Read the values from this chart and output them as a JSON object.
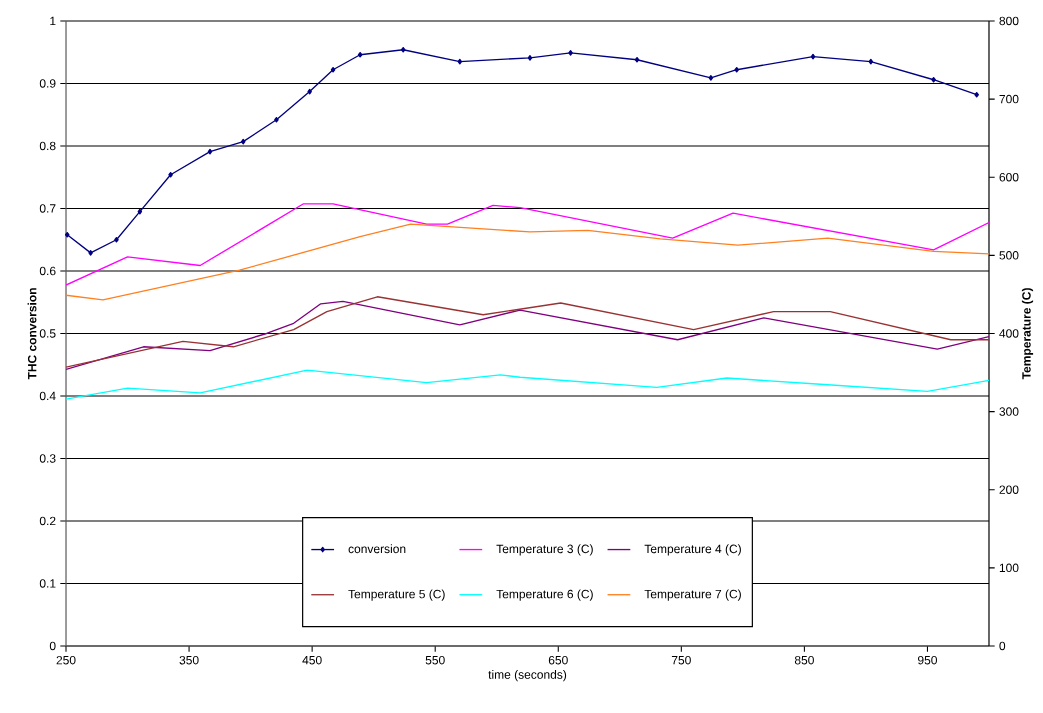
{
  "chart_data": {
    "type": "line",
    "xlabel": "time (seconds)",
    "ylabel": "THC conversion",
    "y2label": "Temperature (C)",
    "xlim": [
      250,
      1000
    ],
    "xticks": [
      250,
      350,
      450,
      550,
      650,
      750,
      850,
      950
    ],
    "ylim": [
      0,
      1
    ],
    "yticks": [
      0,
      0.1,
      0.2,
      0.3,
      0.4,
      0.5,
      0.6,
      0.7,
      0.8,
      0.9,
      1
    ],
    "y2lim": [
      0,
      800
    ],
    "y2ticks": [
      0,
      100,
      200,
      300,
      400,
      500,
      600,
      700,
      800
    ],
    "grid": "y",
    "legend": "bottom",
    "series": [
      {
        "name": "conversion",
        "color": "#000080",
        "marker": "diamond",
        "x": [
          251,
          270,
          291,
          310,
          335,
          367,
          394,
          421,
          448,
          467,
          489,
          524,
          570,
          627,
          660,
          714,
          774,
          795,
          857,
          904,
          955,
          990
        ],
        "values": [
          0.658,
          0.629,
          0.65,
          0.695,
          0.754,
          0.791,
          0.807,
          0.842,
          0.887,
          0.922,
          0.946,
          0.954,
          0.935,
          0.941,
          0.949,
          0.938,
          0.909,
          0.922,
          0.943,
          0.935,
          0.906,
          0.882
        ]
      },
      {
        "name": "Temperature 3 (C)",
        "color": "#ff00ff",
        "axis": "y2",
        "x": [
          250,
          300,
          359,
          443,
          467,
          543,
          560,
          597,
          619,
          743,
          792,
          955,
          1000
        ],
        "values": [
          462,
          498,
          487,
          566,
          566,
          540,
          540,
          564,
          561,
          522,
          554,
          507,
          542
        ]
      },
      {
        "name": "Temperature 4 (C)",
        "color": "#800080",
        "axis": "y2",
        "x": [
          250,
          313,
          367,
          413,
          435,
          457,
          475,
          570,
          619,
          747,
          817,
          958,
          1000
        ],
        "values": [
          354,
          383,
          378,
          400,
          413,
          438,
          441,
          411,
          430,
          392,
          420,
          380,
          396
        ]
      },
      {
        "name": "Temperature 5 (C)",
        "color": "#993333",
        "axis": "y2",
        "x": [
          250,
          345,
          386,
          435,
          462,
          503,
          589,
          652,
          760,
          825,
          871,
          969,
          1000
        ],
        "values": [
          357,
          390,
          383,
          405,
          428,
          447,
          424,
          439,
          405,
          428,
          428,
          392,
          392
        ]
      },
      {
        "name": "Temperature 6 (C)",
        "color": "#00ffff",
        "axis": "y2",
        "x": [
          250,
          300,
          359,
          446,
          543,
          603,
          619,
          730,
          787,
          863,
          950,
          1000
        ],
        "values": [
          316,
          330,
          324,
          353,
          337,
          347,
          344,
          331,
          343,
          335,
          326,
          340
        ]
      },
      {
        "name": "Temperature 7 (C)",
        "color": "#ff8020",
        "axis": "y2",
        "x": [
          250,
          280,
          391,
          489,
          530,
          627,
          674,
          733,
          796,
          869,
          955,
          1000
        ],
        "values": [
          449,
          443,
          481,
          524,
          540,
          530,
          532,
          521,
          513,
          522,
          505,
          502
        ]
      }
    ]
  }
}
